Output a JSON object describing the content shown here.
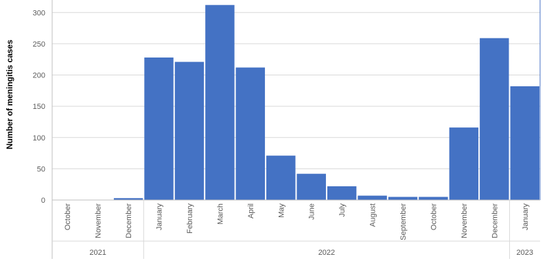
{
  "chart_data": {
    "type": "bar",
    "title": "",
    "xlabel": "",
    "ylabel": "Number of meningitis cases",
    "ylim": [
      0,
      320
    ],
    "yticks": [
      0,
      50,
      100,
      150,
      200,
      250,
      300
    ],
    "grid": true,
    "bar_color": "#4472C4",
    "categories": [
      "October",
      "November",
      "December",
      "January",
      "February",
      "March",
      "April",
      "May",
      "June",
      "July",
      "August",
      "September",
      "October",
      "November",
      "December",
      "January"
    ],
    "values": [
      0,
      0,
      3,
      228,
      221,
      312,
      212,
      71,
      42,
      22,
      7,
      5,
      5,
      116,
      259,
      182
    ],
    "year_groups": [
      {
        "label": "2021",
        "count": 3
      },
      {
        "label": "2022",
        "count": 12
      },
      {
        "label": "2023",
        "count": 1
      }
    ]
  }
}
